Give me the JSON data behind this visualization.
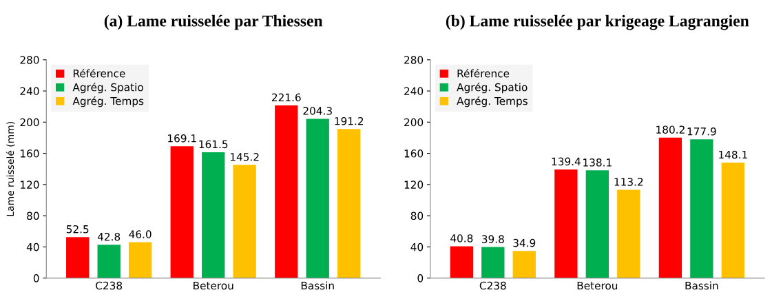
{
  "chart_data": [
    {
      "type": "bar",
      "title": "(a) Lame ruisselée par Thiessen",
      "ylabel": "Lame ruisselé (mm)",
      "categories": [
        "C238",
        "Beterou",
        "Bassin"
      ],
      "series": [
        {
          "name": "Référence",
          "color": "#ff0000",
          "values": [
            52.5,
            169.1,
            221.6
          ],
          "value_labels": [
            "52.5",
            "169.1",
            "221.6"
          ]
        },
        {
          "name": "Agrég. Spatio",
          "color": "#00b050",
          "values": [
            42.8,
            161.5,
            204.3
          ],
          "value_labels": [
            "42.8",
            "161.5",
            "204.3"
          ]
        },
        {
          "name": "Agrég. Temps",
          "color": "#ffc000",
          "values": [
            46.0,
            145.2,
            191.2
          ],
          "value_labels": [
            "46.0",
            "145.2",
            "191.2"
          ]
        }
      ],
      "ylim": [
        0,
        280
      ],
      "yticks": [
        0,
        40,
        80,
        120,
        160,
        200,
        240,
        280
      ],
      "legend": "top left",
      "grid": false
    },
    {
      "type": "bar",
      "title": "(b) Lame ruisselée par krigeage Lagrangien",
      "categories": [
        "C238",
        "Beterou",
        "Bassin"
      ],
      "series": [
        {
          "name": "Référence",
          "color": "#ff0000",
          "values": [
            40.8,
            139.4,
            180.2
          ],
          "value_labels": [
            "40.8",
            "139.4",
            "180.2"
          ]
        },
        {
          "name": "Agrég. Spatio",
          "color": "#00b050",
          "values": [
            39.8,
            138.1,
            177.9
          ],
          "value_labels": [
            "39.8",
            "138.1",
            "177.9"
          ]
        },
        {
          "name": "Agrég. Temps",
          "color": "#ffc000",
          "values": [
            34.9,
            113.2,
            148.1
          ],
          "value_labels": [
            "34.9",
            "113.2",
            "148.1"
          ]
        }
      ],
      "ylim": [
        0,
        280
      ],
      "yticks": [
        0,
        40,
        80,
        120,
        160,
        200,
        240,
        280
      ],
      "legend": "top left",
      "grid": false
    }
  ]
}
